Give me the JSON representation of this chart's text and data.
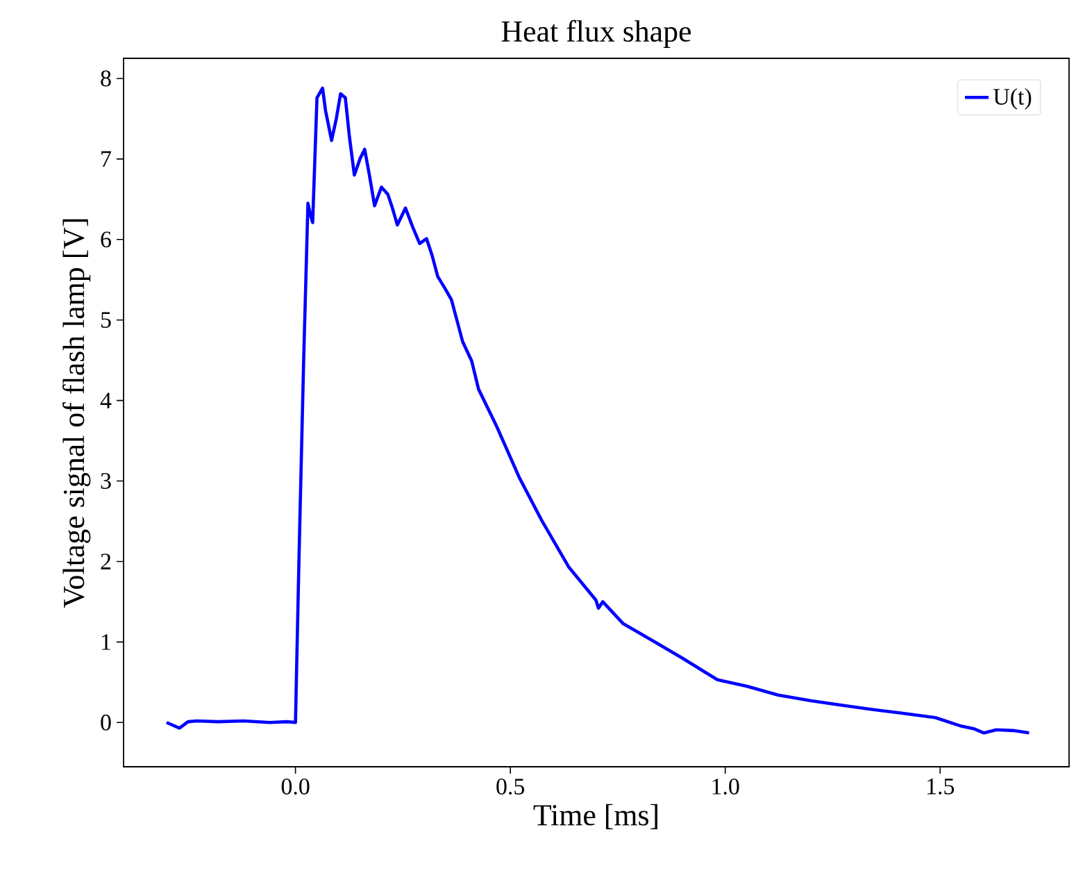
{
  "chart_data": {
    "type": "line",
    "title": "Heat flux shape",
    "xlabel": "Time [ms]",
    "ylabel": "Voltage signal of flash lamp [V]",
    "xlim": [
      -0.4,
      1.8
    ],
    "ylim": [
      -0.55,
      8.25
    ],
    "xticks": [
      {
        "value": 0,
        "label": "0.0"
      },
      0.5,
      {
        "value": 1,
        "label": "1.0"
      },
      1.5
    ],
    "yticks": [
      0,
      1,
      2,
      3,
      4,
      5,
      6,
      7,
      8
    ],
    "grid": false,
    "legend": "top right",
    "marker": "none",
    "line_style": "solid",
    "series": [
      {
        "name": "U(t)",
        "color": "#0000ff",
        "x": [
          -0.3,
          -0.27,
          -0.25,
          -0.23,
          -0.18,
          -0.12,
          -0.06,
          -0.02,
          0.0,
          0.008,
          0.019,
          0.029,
          0.035,
          0.04,
          0.05,
          0.063,
          0.07,
          0.084,
          0.095,
          0.105,
          0.116,
          0.125,
          0.137,
          0.15,
          0.161,
          0.172,
          0.184,
          0.2,
          0.215,
          0.225,
          0.237,
          0.256,
          0.273,
          0.289,
          0.305,
          0.318,
          0.331,
          0.347,
          0.363,
          0.389,
          0.41,
          0.426,
          0.468,
          0.521,
          0.573,
          0.636,
          0.699,
          0.705,
          0.715,
          0.762,
          0.836,
          0.9,
          0.982,
          1.05,
          1.123,
          1.2,
          1.264,
          1.33,
          1.404,
          1.489,
          1.546,
          1.58,
          1.602,
          1.631,
          1.67,
          1.707
        ],
        "values": [
          0.0,
          -0.07,
          0.01,
          0.02,
          0.01,
          0.02,
          0.0,
          0.01,
          0.0,
          2.0,
          4.49,
          6.45,
          6.3,
          6.21,
          7.76,
          7.88,
          7.6,
          7.23,
          7.5,
          7.81,
          7.76,
          7.3,
          6.8,
          7.0,
          7.12,
          6.8,
          6.42,
          6.65,
          6.56,
          6.4,
          6.18,
          6.39,
          6.15,
          5.95,
          6.01,
          5.8,
          5.54,
          5.4,
          5.25,
          4.73,
          4.49,
          4.14,
          3.68,
          3.04,
          2.51,
          1.93,
          1.52,
          1.42,
          1.5,
          1.23,
          1.0,
          0.8,
          0.53,
          0.45,
          0.34,
          0.27,
          0.22,
          0.17,
          0.12,
          0.06,
          -0.04,
          -0.08,
          -0.13,
          -0.09,
          -0.1,
          -0.13
        ]
      }
    ]
  }
}
